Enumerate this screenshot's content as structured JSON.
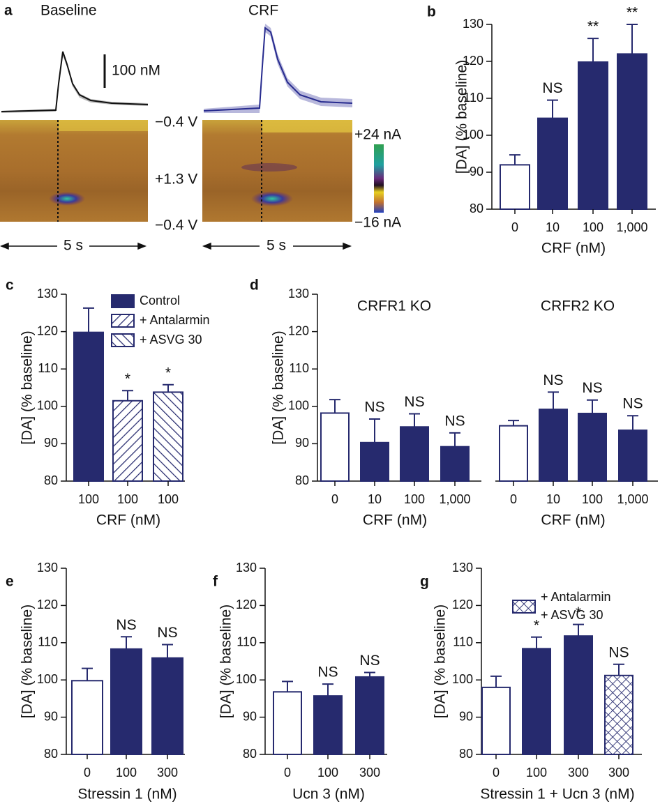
{
  "panel_a": {
    "label": "a",
    "baseline": "Baseline",
    "crf": "CRF",
    "scale_bar": "100 nM",
    "voltages": [
      "−0.4 V",
      "+1.3 V",
      "−0.4 V"
    ],
    "colorbar": [
      "+24 nA",
      "−16 nA"
    ],
    "time": [
      "5 s",
      "5 s"
    ]
  },
  "chart_data": [
    {
      "type": "bar",
      "panel": "b",
      "categories": [
        "0",
        "10",
        "100",
        "1,000"
      ],
      "values": [
        92,
        104.6,
        119.8,
        122
      ],
      "errors": [
        2.7,
        4.9,
        6.4,
        8
      ],
      "annotations": [
        null,
        "NS",
        "**",
        "**"
      ],
      "fills": [
        "open",
        "solid",
        "solid",
        "solid"
      ],
      "color": "#262a6e",
      "ylim": [
        80,
        130
      ],
      "yticks": [
        80,
        90,
        100,
        110,
        120,
        130
      ],
      "xlabel": "CRF (nM)",
      "ylabel": "[DA] (% baseline)"
    },
    {
      "type": "bar",
      "panel": "c",
      "categories": [
        "100",
        "100",
        "100"
      ],
      "values": [
        119.8,
        101.5,
        103.8
      ],
      "errors": [
        6.5,
        2.7,
        2
      ],
      "annotations": [
        null,
        "*",
        "*"
      ],
      "fills": [
        "solid",
        "hatch-back",
        "hatch-forward"
      ],
      "color": "#262a6e",
      "legend": [
        {
          "name": [
            "Control"
          ],
          "fill": "solid"
        },
        {
          "name": [
            "+ Antalarmin"
          ],
          "fill": "hatch-back"
        },
        {
          "name": [
            "+ ASVG 30"
          ],
          "fill": "hatch-forward"
        }
      ],
      "ylim": [
        80,
        130
      ],
      "yticks": [
        80,
        90,
        100,
        110,
        120,
        130
      ],
      "xlabel": "CRF (nM)",
      "ylabel": "[DA] (% baseline)"
    },
    {
      "type": "bar",
      "panel": "d",
      "title": "CRFR1 KO",
      "categories": [
        "0",
        "10",
        "100",
        "1,000"
      ],
      "values": [
        98.2,
        90.3,
        94.5,
        89.2
      ],
      "errors": [
        3.6,
        6.3,
        3.5,
        3.7
      ],
      "annotations": [
        null,
        "NS",
        "NS",
        "NS"
      ],
      "fills": [
        "open",
        "solid",
        "solid",
        "solid"
      ],
      "color": "#262a6e",
      "ylim": [
        80,
        130
      ],
      "yticks": [
        80,
        90,
        100,
        110,
        120,
        130
      ],
      "xlabel": "CRF (nM)",
      "ylabel": "[DA] (% baseline)"
    },
    {
      "type": "bar",
      "title": "CRFR2 KO",
      "categories": [
        "0",
        "10",
        "100",
        "1,000"
      ],
      "values": [
        94.8,
        99.2,
        98.1,
        93.6
      ],
      "errors": [
        1.4,
        4.6,
        3.6,
        3.9
      ],
      "annotations": [
        null,
        "NS",
        "NS",
        "NS"
      ],
      "fills": [
        "open",
        "solid",
        "solid",
        "solid"
      ],
      "color": "#262a6e",
      "ylim": [
        80,
        130
      ],
      "xlabel": "CRF (nM)"
    },
    {
      "type": "bar",
      "panel": "e",
      "categories": [
        "0",
        "100",
        "300"
      ],
      "values": [
        99.8,
        108.3,
        105.9
      ],
      "errors": [
        3.3,
        3.3,
        3.6
      ],
      "annotations": [
        null,
        "NS",
        "NS"
      ],
      "fills": [
        "open",
        "solid",
        "solid"
      ],
      "color": "#262a6e",
      "ylim": [
        80,
        130
      ],
      "yticks": [
        80,
        90,
        100,
        110,
        120,
        130
      ],
      "xlabel": "Stressin 1 (nM)",
      "ylabel": "[DA] (% baseline)"
    },
    {
      "type": "bar",
      "panel": "f",
      "categories": [
        "0",
        "100",
        "300"
      ],
      "values": [
        96.8,
        95.7,
        100.8
      ],
      "errors": [
        2.8,
        3.2,
        1.2
      ],
      "annotations": [
        null,
        "NS",
        "NS"
      ],
      "fills": [
        "open",
        "solid",
        "solid"
      ],
      "color": "#262a6e",
      "ylim": [
        80,
        130
      ],
      "yticks": [
        80,
        90,
        100,
        110,
        120,
        130
      ],
      "xlabel": "Ucn 3 (nM)",
      "ylabel": "[DA] (% baseline)"
    },
    {
      "type": "bar",
      "panel": "g",
      "categories": [
        "0",
        "100",
        "300",
        "300"
      ],
      "values": [
        98,
        108.4,
        111.8,
        101.2
      ],
      "errors": [
        3,
        3.1,
        3.1,
        3
      ],
      "annotations": [
        null,
        "*",
        "*",
        "NS"
      ],
      "fills": [
        "open",
        "solid",
        "solid",
        "crosshatch"
      ],
      "color": "#262a6e",
      "legend": [
        {
          "name": [
            "+ Antalarmin",
            "+ ASVG 30"
          ],
          "fill": "crosshatch"
        }
      ],
      "ylim": [
        80,
        130
      ],
      "yticks": [
        80,
        90,
        100,
        110,
        120,
        130
      ],
      "xlabel": "Stressin 1 + Ucn 3 (nM)",
      "ylabel": "[DA] (% baseline)"
    }
  ]
}
